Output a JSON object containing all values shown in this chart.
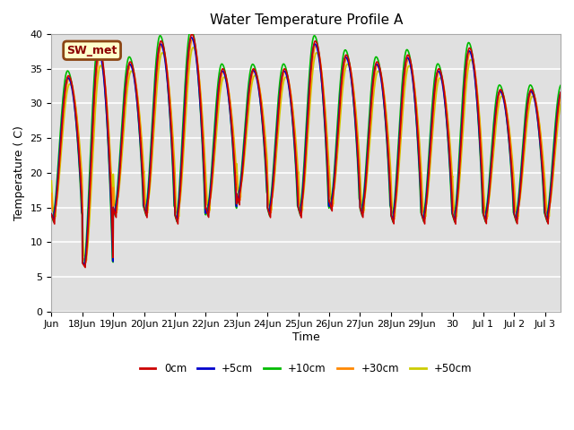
{
  "title": "Water Temperature Profile A",
  "xlabel": "Time",
  "ylabel": "Temperature ( C)",
  "ylim": [
    0,
    40
  ],
  "bg_color": "#e0e0e0",
  "grid_color": "white",
  "annotation_text": "SW_met",
  "annotation_bg": "#ffffcc",
  "annotation_border": "#8B4513",
  "annotation_text_color": "#8B0000",
  "series": [
    {
      "label": "0cm",
      "color": "#cc0000",
      "lw": 1.2
    },
    {
      "label": "+5cm",
      "color": "#0000cc",
      "lw": 1.2
    },
    {
      "label": "+10cm",
      "color": "#00bb00",
      "lw": 1.2
    },
    {
      "label": "+30cm",
      "color": "#ff8800",
      "lw": 1.2
    },
    {
      "label": "+50cm",
      "color": "#cccc00",
      "lw": 1.2
    }
  ],
  "day_data": [
    {
      "amp": 20,
      "min": 14,
      "label": "Jun18"
    },
    {
      "amp": 31,
      "min": 7,
      "label": "Jun19"
    },
    {
      "amp": 21,
      "min": 15,
      "label": "Jun20"
    },
    {
      "amp": 24,
      "min": 15,
      "label": "Jun21"
    },
    {
      "amp": 26,
      "min": 14,
      "label": "Jun22"
    },
    {
      "amp": 20,
      "min": 15,
      "label": "Jun23"
    },
    {
      "amp": 18,
      "min": 17,
      "label": "Jun24"
    },
    {
      "amp": 20,
      "min": 15,
      "label": "Jun25"
    },
    {
      "amp": 24,
      "min": 15,
      "label": "Jun26"
    },
    {
      "amp": 21,
      "min": 16,
      "label": "Jun27"
    },
    {
      "amp": 21,
      "min": 15,
      "label": "Jun28"
    },
    {
      "amp": 23,
      "min": 14,
      "label": "Jun29"
    },
    {
      "amp": 21,
      "min": 14,
      "label": "Jun30"
    },
    {
      "amp": 24,
      "min": 14,
      "label": "Jul1"
    },
    {
      "amp": 18,
      "min": 14,
      "label": "Jul2"
    },
    {
      "amp": 18,
      "min": 14,
      "label": "Jul3"
    }
  ],
  "xlim": [
    0,
    16.5
  ],
  "tick_positions": [
    0,
    1,
    2,
    3,
    4,
    5,
    6,
    7,
    8,
    9,
    10,
    11,
    12,
    13,
    14,
    15,
    16
  ],
  "tick_labels": [
    "Jun",
    "18Jun",
    "19Jun",
    "20Jun",
    "21Jun",
    "22Jun",
    "23Jun",
    "24Jun",
    "25Jun",
    "26Jun",
    "27Jun",
    "28Jun",
    "29Jun",
    "30",
    "Jul 1",
    "Jul 2",
    "Jul 3"
  ]
}
